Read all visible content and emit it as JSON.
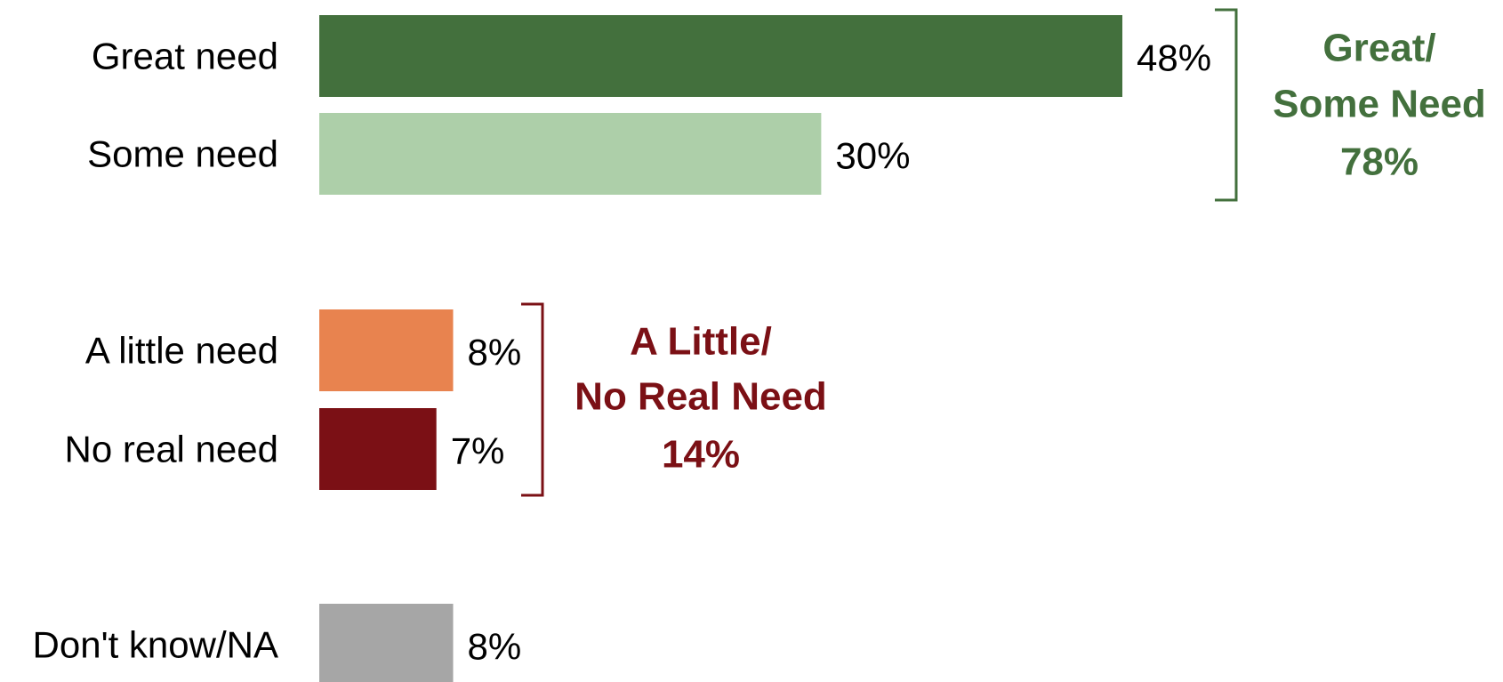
{
  "chart_data": {
    "type": "bar",
    "orientation": "horizontal",
    "title": "",
    "xlabel": "",
    "ylabel": "",
    "xlim": [
      0,
      52
    ],
    "grid": false,
    "categories": [
      "Great need",
      "Some need",
      "A little need",
      "No real need",
      "Don't know/NA"
    ],
    "values": [
      48,
      30,
      8,
      7,
      8
    ],
    "value_labels": [
      "48%",
      "30%",
      "8%",
      "7%",
      "8%"
    ],
    "colors": [
      "#43703D",
      "#ADCFA9",
      "#E8834F",
      "#7B1015",
      "#A6A6A6"
    ],
    "groups": [
      {
        "members": [
          0,
          1
        ],
        "label_lines": [
          "Great/",
          "Some Need",
          "78%"
        ],
        "color": "#43703D"
      },
      {
        "members": [
          2,
          3
        ],
        "label_lines": [
          "A Little/",
          "No Real Need",
          "14%"
        ],
        "color": "#7B1015"
      }
    ]
  }
}
